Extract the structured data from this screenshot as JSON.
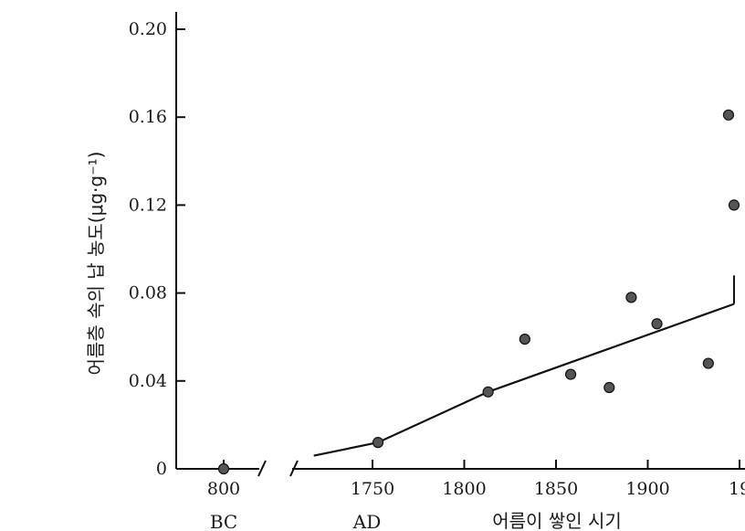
{
  "chart_data": {
    "type": "scatter",
    "title": "",
    "ylabel": "어름층 속의 납 농도(μg·g⁻¹)",
    "xlabel": "어름이 쌓인 시기",
    "ylim": [
      0,
      0.2
    ],
    "yticks": [
      "0",
      "0.04",
      "0.08",
      "0.12",
      "0.16",
      "0.20"
    ],
    "xticks_bc": [
      "800"
    ],
    "xticks_ad": [
      "1750",
      "1800",
      "1850",
      "1900",
      "19"
    ],
    "era_labels": {
      "bc": "BC",
      "ad": "AD"
    },
    "axis_break": true,
    "grid": false,
    "legend": "none",
    "colors": {
      "marker": "#555555",
      "line": "#111111"
    },
    "series": [
      {
        "kind": "points",
        "points": [
          {
            "era": "BC",
            "x": 800,
            "y": 0.0
          },
          {
            "era": "AD",
            "x": 1753,
            "y": 0.012
          },
          {
            "era": "AD",
            "x": 1813,
            "y": 0.035
          },
          {
            "era": "AD",
            "x": 1833,
            "y": 0.059
          },
          {
            "era": "AD",
            "x": 1858,
            "y": 0.043
          },
          {
            "era": "AD",
            "x": 1879,
            "y": 0.037
          },
          {
            "era": "AD",
            "x": 1891,
            "y": 0.078
          },
          {
            "era": "AD",
            "x": 1905,
            "y": 0.066
          },
          {
            "era": "AD",
            "x": 1933,
            "y": 0.048
          },
          {
            "era": "AD",
            "x": 1944,
            "y": 0.161
          },
          {
            "era": "AD",
            "x": 1947,
            "y": 0.12
          }
        ]
      },
      {
        "kind": "trend",
        "points": [
          {
            "x": 1718,
            "y": 0.006
          },
          {
            "x": 1753,
            "y": 0.012
          },
          {
            "x": 1813,
            "y": 0.035
          },
          {
            "x": 1947,
            "y": 0.075
          }
        ]
      }
    ]
  }
}
